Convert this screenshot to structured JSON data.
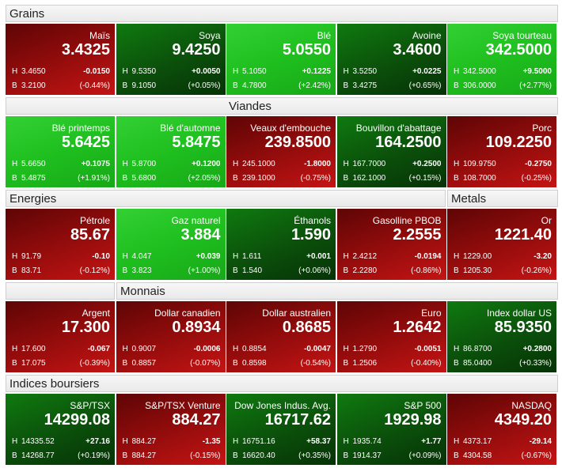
{
  "labels": {
    "high": "H",
    "low": "B"
  },
  "sections": [
    {
      "title": "Grains",
      "tiles": [
        {
          "name": "Maïs",
          "last": "3.4325",
          "change": "-0.0150",
          "pct": "(-0.44%)",
          "high": "3.4650",
          "low": "3.2100",
          "color": "red"
        },
        {
          "name": "Soya",
          "last": "9.4250",
          "change": "+0.0050",
          "pct": "(+0.05%)",
          "high": "9.5350",
          "low": "9.1050",
          "color": "darkgreen"
        },
        {
          "name": "Blé",
          "last": "5.0550",
          "change": "+0.1225",
          "pct": "(+2.42%)",
          "high": "5.1050",
          "low": "4.7800",
          "color": "green"
        },
        {
          "name": "Avoine",
          "last": "3.4600",
          "change": "+0.0225",
          "pct": "(+0.65%)",
          "high": "3.5250",
          "low": "3.4275",
          "color": "darkgreen"
        },
        {
          "name": "Soya tourteau",
          "last": "342.5000",
          "change": "+9.5000",
          "pct": "(+2.77%)",
          "high": "342.5000",
          "low": "306.0000",
          "color": "green"
        }
      ]
    },
    {
      "title": "Viandes",
      "tiles": [
        {
          "name": "Blé printemps",
          "last": "5.6425",
          "change": "+0.1075",
          "pct": "(+1.91%)",
          "high": "5.6650",
          "low": "5.4875",
          "color": "green"
        },
        {
          "name": "Blé d'automne",
          "last": "5.8475",
          "change": "+0.1200",
          "pct": "(+2.05%)",
          "high": "5.8700",
          "low": "5.6800",
          "color": "green"
        },
        {
          "name": "Veaux d'embouche",
          "last": "239.8500",
          "change": "-1.8000",
          "pct": "(-0.75%)",
          "high": "245.1000",
          "low": "239.1000",
          "color": "red"
        },
        {
          "name": "Bouvillon d'abattage",
          "last": "164.2500",
          "change": "+0.2500",
          "pct": "(+0.15%)",
          "high": "167.7000",
          "low": "162.1000",
          "color": "darkgreen"
        },
        {
          "name": "Porc",
          "last": "109.2250",
          "change": "-0.2750",
          "pct": "(-0.25%)",
          "high": "109.9750",
          "low": "108.7000",
          "color": "red"
        }
      ]
    },
    {
      "title": "Energies",
      "tiles": [
        {
          "name": "Pétrole",
          "last": "85.67",
          "change": "-0.10",
          "pct": "(-0.12%)",
          "high": "91.79",
          "low": "83.71",
          "color": "red"
        },
        {
          "name": "Gaz naturel",
          "last": "3.884",
          "change": "+0.039",
          "pct": "(+1.00%)",
          "high": "4.047",
          "low": "3.823",
          "color": "green"
        },
        {
          "name": "Éthanols",
          "last": "1.590",
          "change": "+0.001",
          "pct": "(+0.06%)",
          "high": "1.611",
          "low": "1.540",
          "color": "darkgreen"
        },
        {
          "name": "Gasolline PBOB",
          "last": "2.2555",
          "change": "-0.0194",
          "pct": "(-0.86%)",
          "high": "2.4212",
          "low": "2.2280",
          "color": "red"
        }
      ]
    },
    {
      "title": "Metals",
      "tiles": [
        {
          "name": "Or",
          "last": "1221.40",
          "change": "-3.20",
          "pct": "(-0.26%)",
          "high": "1229.00",
          "low": "1205.30",
          "color": "red"
        }
      ]
    },
    {
      "title": "Monnais",
      "tiles": [
        {
          "name": "Argent",
          "last": "17.300",
          "change": "-0.067",
          "pct": "(-0.39%)",
          "high": "17.600",
          "low": "17.075",
          "color": "red"
        },
        {
          "name": "Dollar canadien",
          "last": "0.8934",
          "change": "-0.0006",
          "pct": "(-0.07%)",
          "high": "0.9007",
          "low": "0.8857",
          "color": "red"
        },
        {
          "name": "Dollar australien",
          "last": "0.8685",
          "change": "-0.0047",
          "pct": "(-0.54%)",
          "high": "0.8854",
          "low": "0.8598",
          "color": "red"
        },
        {
          "name": "Euro",
          "last": "1.2642",
          "change": "-0.0051",
          "pct": "(-0.40%)",
          "high": "1.2790",
          "low": "1.2506",
          "color": "red"
        },
        {
          "name": "Index dollar US",
          "last": "85.9350",
          "change": "+0.2800",
          "pct": "(+0.33%)",
          "high": "86.8700",
          "low": "85.0400",
          "color": "darkgreen"
        }
      ]
    },
    {
      "title": "Indices boursiers",
      "tiles": [
        {
          "name": "S&P/TSX",
          "last": "14299.08",
          "change": "+27.16",
          "pct": "(+0.19%)",
          "high": "14335.52",
          "low": "14268.77",
          "color": "darkgreen"
        },
        {
          "name": "S&P/TSX Venture",
          "last": "884.27",
          "change": "-1.35",
          "pct": "(-0.15%)",
          "high": "884.27",
          "low": "884.27",
          "color": "red"
        },
        {
          "name": "Dow Jones Indus. Avg.",
          "last": "16717.62",
          "change": "+58.37",
          "pct": "(+0.35%)",
          "high": "16751.16",
          "low": "16620.40",
          "color": "darkgreen"
        },
        {
          "name": "S&P 500",
          "last": "1929.98",
          "change": "+1.77",
          "pct": "(+0.09%)",
          "high": "1935.74",
          "low": "1914.37",
          "color": "darkgreen"
        },
        {
          "name": "NASDAQ",
          "last": "4349.20",
          "change": "-29.14",
          "pct": "(-0.67%)",
          "high": "4373.17",
          "low": "4304.58",
          "color": "red"
        }
      ]
    }
  ]
}
